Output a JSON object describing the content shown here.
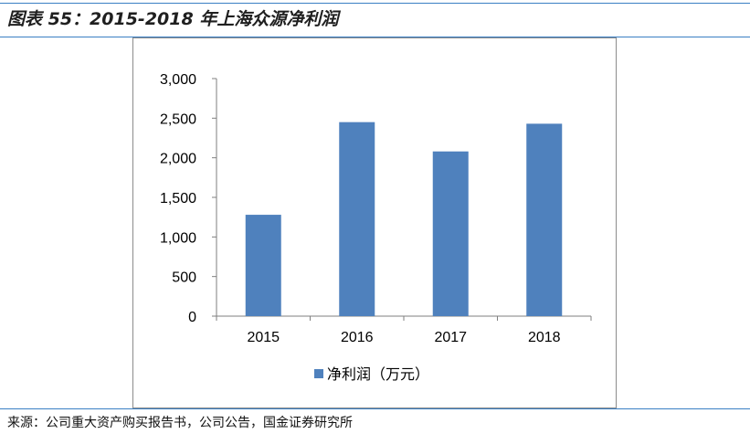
{
  "caption": "图表 55：2015-2018 年上海众源净利润",
  "source": "来源：公司重大资产购买报告书，公司公告，国金证券研究所",
  "colors": {
    "bar": "#4f81bd",
    "rule": "#3a7fc4",
    "frame": "#8c8c8c"
  },
  "chart_data": {
    "type": "bar",
    "categories": [
      "2015",
      "2016",
      "2017",
      "2018"
    ],
    "series": [
      {
        "name": "净利润（万元）",
        "values": [
          1280,
          2450,
          2080,
          2430
        ]
      }
    ],
    "ylim": [
      0,
      3000
    ],
    "yticks": [
      0,
      500,
      1000,
      1500,
      2000,
      2500,
      3000
    ],
    "ytick_labels": [
      "0",
      "500",
      "1,000",
      "1,500",
      "2,000",
      "2,500",
      "3,000"
    ],
    "grid": false,
    "legend": "bottom"
  }
}
